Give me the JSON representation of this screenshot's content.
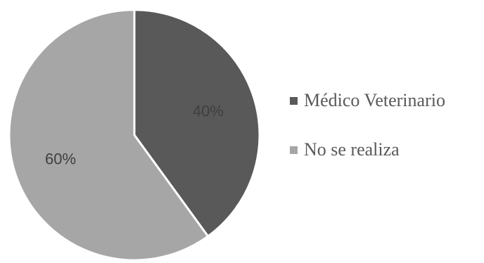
{
  "chart_data": {
    "type": "pie",
    "series": [
      {
        "name": "Médico Veterinario",
        "value": 40,
        "label": "40%",
        "color": "#595959"
      },
      {
        "name": "No se realiza",
        "value": 60,
        "label": "60%",
        "color": "#a6a6a6"
      }
    ],
    "title": "",
    "legend_position": "right",
    "start_angle": "top",
    "direction": "clockwise"
  }
}
